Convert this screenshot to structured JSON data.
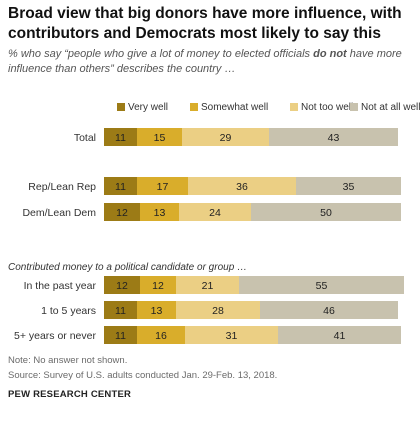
{
  "chart_data": {
    "type": "bar",
    "stacked": true,
    "orientation": "horizontal",
    "title": "Broad view that big donors have more influence, with contributors and Democrats most likely to say this",
    "subtitle": {
      "before": "% who say “people who give a lot of money to elected officials ",
      "emphasis": "do not",
      "after": " have more influence than others” describes the country …"
    },
    "legend_position": "top",
    "series": [
      {
        "name": "Very well",
        "color": "#9c7b16"
      },
      {
        "name": "Somewhat well",
        "color": "#d9ad2b"
      },
      {
        "name": "Not too well",
        "color": "#ebcf84"
      },
      {
        "name": "Not at all well",
        "color": "#c8c2ae"
      }
    ],
    "section_label": "Contributed money to a political candidate or group …",
    "rows": [
      {
        "label": "Total",
        "values": [
          11,
          15,
          29,
          43
        ]
      },
      {
        "label": "Rep/Lean Rep",
        "values": [
          11,
          17,
          36,
          35
        ]
      },
      {
        "label": "Dem/Lean Dem",
        "values": [
          12,
          13,
          24,
          50
        ]
      },
      {
        "label": "In the past year",
        "values": [
          12,
          12,
          21,
          55
        ]
      },
      {
        "label": "1 to 5 years",
        "values": [
          11,
          13,
          28,
          46
        ]
      },
      {
        "label": "5+ years or never",
        "values": [
          11,
          16,
          31,
          41
        ]
      }
    ]
  },
  "notes": {
    "note": "Note: No answer not shown.",
    "source": "Source: Survey of U.S. adults conducted Jan. 29-Feb. 13, 2018.",
    "org": "PEW RESEARCH CENTER"
  }
}
